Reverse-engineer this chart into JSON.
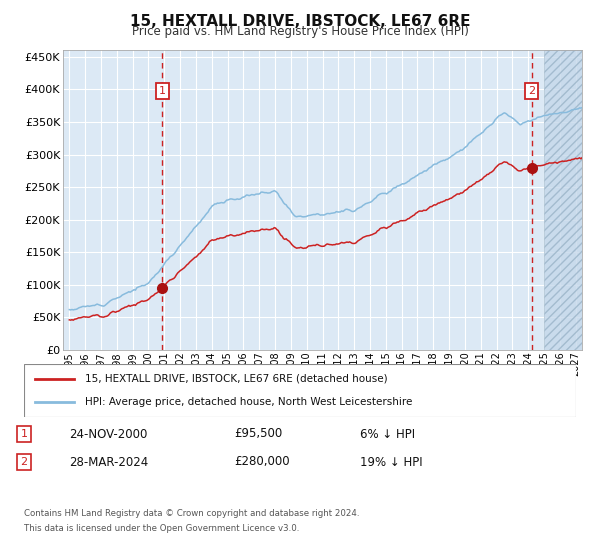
{
  "title": "15, HEXTALL DRIVE, IBSTOCK, LE67 6RE",
  "subtitle": "Price paid vs. HM Land Registry's House Price Index (HPI)",
  "legend_line1": "15, HEXTALL DRIVE, IBSTOCK, LE67 6RE (detached house)",
  "legend_line2": "HPI: Average price, detached house, North West Leicestershire",
  "transaction1_date": "24-NOV-2000",
  "transaction1_price": 95500,
  "transaction1_price_str": "£95,500",
  "transaction1_hpi": "6% ↓ HPI",
  "transaction2_date": "28-MAR-2024",
  "transaction2_price": 280000,
  "transaction2_price_str": "£280,000",
  "transaction2_hpi": "19% ↓ HPI",
  "footer_line1": "Contains HM Land Registry data © Crown copyright and database right 2024.",
  "footer_line2": "This data is licensed under the Open Government Licence v3.0.",
  "bg_color": "#dce9f5",
  "grid_color": "#ffffff",
  "hpi_line_color": "#88bbdd",
  "price_line_color": "#cc2222",
  "marker_color": "#aa1111",
  "vline_color": "#cc2222",
  "box_edge_color": "#cc2222",
  "box_text_color": "#cc2222",
  "ylim_min": 0,
  "ylim_max": 460000,
  "yticks": [
    0,
    50000,
    100000,
    150000,
    200000,
    250000,
    300000,
    350000,
    400000,
    450000
  ],
  "ytick_labels": [
    "£0",
    "£50K",
    "£100K",
    "£150K",
    "£200K",
    "£250K",
    "£300K",
    "£350K",
    "£400K",
    "£450K"
  ],
  "transaction1_x": 2000.88,
  "transaction2_x": 2024.22,
  "future_start_x": 2025.0,
  "xmin": 1994.6,
  "xmax": 2027.4
}
